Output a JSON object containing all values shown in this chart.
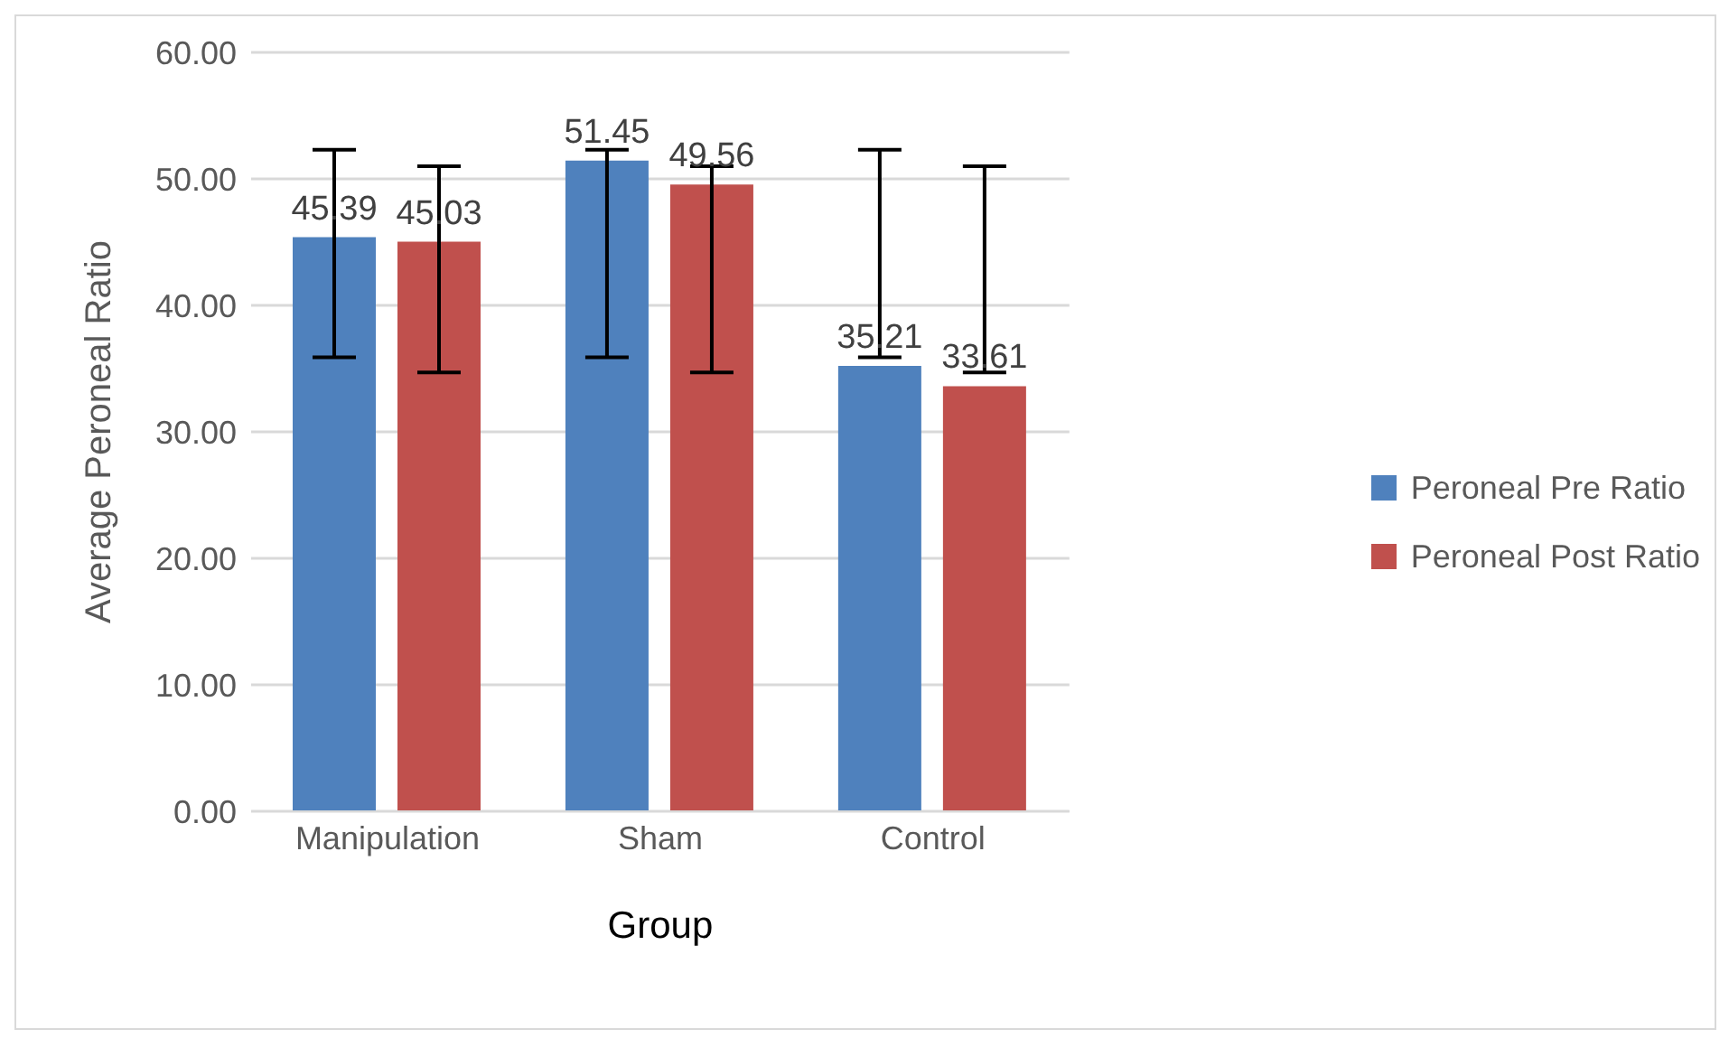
{
  "chart_data": {
    "type": "bar",
    "xlabel": "Group",
    "ylabel": "Average Peroneal Ratio",
    "categories": [
      "Manipulation",
      "Sham",
      "Control"
    ],
    "series": [
      {
        "name": "Peroneal Pre Ratio",
        "color": "#4f81bd",
        "values": [
          45.39,
          51.45,
          35.21
        ],
        "errors": [
          [
            35.9,
            52.3
          ],
          [
            35.9,
            52.3
          ],
          [
            35.9,
            52.3
          ]
        ]
      },
      {
        "name": "Peroneal Post Ratio",
        "color": "#c0504d",
        "values": [
          45.03,
          49.56,
          33.61
        ],
        "errors": [
          [
            34.7,
            51.0
          ],
          [
            34.7,
            51.0
          ],
          [
            34.7,
            51.0
          ]
        ]
      }
    ],
    "ylim": [
      0,
      60
    ],
    "yticks": [
      {
        "value": 0,
        "label": "0.00"
      },
      {
        "value": 10,
        "label": "10.00"
      },
      {
        "value": 20,
        "label": "20.00"
      },
      {
        "value": 30,
        "label": "30.00"
      },
      {
        "value": 40,
        "label": "40.00"
      },
      {
        "value": 50,
        "label": "50.00"
      },
      {
        "value": 60,
        "label": "60.00"
      }
    ],
    "grid": "y",
    "legend": "right",
    "data_labels": true
  }
}
